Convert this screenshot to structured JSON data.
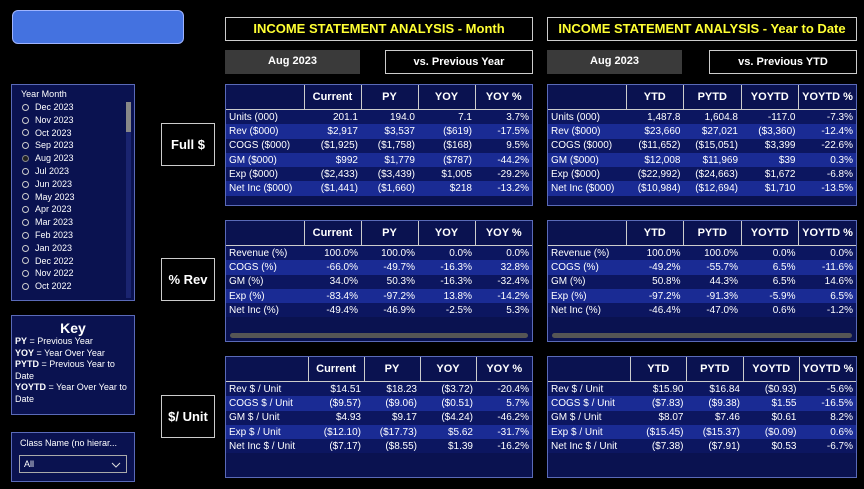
{
  "headers": {
    "month_title": "INCOME STATEMENT ANALYSIS - Month",
    "ytd_title": "INCOME STATEMENT ANALYSIS - Year to Date",
    "month_period": "Aug 2023",
    "month_compare": "vs. Previous Year",
    "ytd_period": "Aug 2023",
    "ytd_compare": "vs. Previous YTD"
  },
  "slicer": {
    "title": "Year Month",
    "selected": 4,
    "items": [
      "Dec 2023",
      "Nov 2023",
      "Oct 2023",
      "Sep 2023",
      "Aug 2023",
      "Jul 2023",
      "Jun 2023",
      "May 2023",
      "Apr 2023",
      "Mar 2023",
      "Feb 2023",
      "Jan 2023",
      "Dec 2022",
      "Nov 2022",
      "Oct 2022"
    ]
  },
  "key": {
    "title": "Key",
    "items": [
      {
        "term": "PY",
        "definition": "= Previous Year"
      },
      {
        "term": "YOY",
        "definition": "= Year Over Year"
      },
      {
        "term": "PYTD",
        "definition": "= Previous Year to Date"
      },
      {
        "term": "YOYTD",
        "definition": "= Year Over Year to Date"
      }
    ]
  },
  "filter": {
    "title": "Class Name (no hierar...",
    "value": "All"
  },
  "row_labels": [
    "Full $",
    "% Rev",
    "$/ Unit"
  ],
  "tables": [
    {
      "columns": [
        "Current",
        "PY",
        "YOY",
        "YOY %"
      ],
      "rows": [
        [
          "Units (000)",
          "201.1",
          "194.0",
          "7.1",
          "3.7%"
        ],
        [
          "Rev ($000)",
          "$2,917",
          "$3,537",
          "($619)",
          "-17.5%"
        ],
        [
          "COGS ($000)",
          "($1,925)",
          "($1,758)",
          "($168)",
          "9.5%"
        ],
        [
          "GM ($000)",
          "$992",
          "$1,779",
          "($787)",
          "-44.2%"
        ],
        [
          "Exp ($000)",
          "($2,433)",
          "($3,439)",
          "$1,005",
          "-29.2%"
        ],
        [
          "Net Inc ($000)",
          "($1,441)",
          "($1,660)",
          "$218",
          "-13.2%"
        ]
      ]
    },
    {
      "columns": [
        "YTD",
        "PYTD",
        "YOYTD",
        "YOYTD %"
      ],
      "rows": [
        [
          "Units (000)",
          "1,487.8",
          "1,604.8",
          "-117.0",
          "-7.3%"
        ],
        [
          "Rev ($000)",
          "$23,660",
          "$27,021",
          "($3,360)",
          "-12.4%"
        ],
        [
          "COGS ($000)",
          "($11,652)",
          "($15,051)",
          "$3,399",
          "-22.6%"
        ],
        [
          "GM ($000)",
          "$12,008",
          "$11,969",
          "$39",
          "0.3%"
        ],
        [
          "Exp ($000)",
          "($22,992)",
          "($24,663)",
          "$1,672",
          "-6.8%"
        ],
        [
          "Net Inc ($000)",
          "($10,984)",
          "($12,694)",
          "$1,710",
          "-13.5%"
        ]
      ]
    },
    {
      "columns": [
        "Current",
        "PY",
        "YOY",
        "YOY %"
      ],
      "rows": [
        [
          "Revenue (%)",
          "100.0%",
          "100.0%",
          "0.0%",
          "0.0%"
        ],
        [
          "COGS (%)",
          "-66.0%",
          "-49.7%",
          "-16.3%",
          "32.8%"
        ],
        [
          "GM (%)",
          "34.0%",
          "50.3%",
          "-16.3%",
          "-32.4%"
        ],
        [
          "Exp (%)",
          "-83.4%",
          "-97.2%",
          "13.8%",
          "-14.2%"
        ],
        [
          "Net Inc (%)",
          "-49.4%",
          "-46.9%",
          "-2.5%",
          "5.3%"
        ]
      ]
    },
    {
      "columns": [
        "YTD",
        "PYTD",
        "YOYTD",
        "YOYTD %"
      ],
      "rows": [
        [
          "Revenue (%)",
          "100.0%",
          "100.0%",
          "0.0%",
          "0.0%"
        ],
        [
          "COGS (%)",
          "-49.2%",
          "-55.7%",
          "6.5%",
          "-11.6%"
        ],
        [
          "GM (%)",
          "50.8%",
          "44.3%",
          "6.5%",
          "14.6%"
        ],
        [
          "Exp (%)",
          "-97.2%",
          "-91.3%",
          "-5.9%",
          "6.5%"
        ],
        [
          "Net Inc (%)",
          "-46.4%",
          "-47.0%",
          "0.6%",
          "-1.2%"
        ]
      ]
    },
    {
      "columns": [
        "Current",
        "PY",
        "YOY",
        "YOY %"
      ],
      "rows": [
        [
          "Rev $ / Unit",
          "$14.51",
          "$18.23",
          "($3.72)",
          "-20.4%"
        ],
        [
          "COGS $ / Unit",
          "($9.57)",
          "($9.06)",
          "($0.51)",
          "5.7%"
        ],
        [
          "GM $ / Unit",
          "$4.93",
          "$9.17",
          "($4.24)",
          "-46.2%"
        ],
        [
          "Exp $ / Unit",
          "($12.10)",
          "($17.73)",
          "$5.62",
          "-31.7%"
        ],
        [
          "Net Inc $ / Unit",
          "($7.17)",
          "($8.55)",
          "$1.39",
          "-16.2%"
        ]
      ]
    },
    {
      "columns": [
        "YTD",
        "PYTD",
        "YOYTD",
        "YOYTD %"
      ],
      "rows": [
        [
          "Rev $ / Unit",
          "$15.90",
          "$16.84",
          "($0.93)",
          "-5.6%"
        ],
        [
          "COGS $ / Unit",
          "($7.83)",
          "($9.38)",
          "$1.55",
          "-16.5%"
        ],
        [
          "GM $ / Unit",
          "$8.07",
          "$7.46",
          "$0.61",
          "8.2%"
        ],
        [
          "Exp $ / Unit",
          "($15.45)",
          "($15.37)",
          "($0.09)",
          "0.6%"
        ],
        [
          "Net Inc $ / Unit",
          "($7.38)",
          "($7.91)",
          "$0.53",
          "-6.7%"
        ]
      ]
    }
  ]
}
